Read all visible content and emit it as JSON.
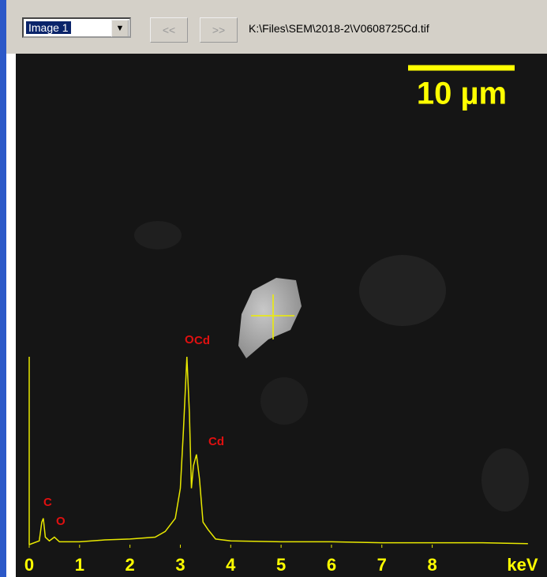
{
  "toolbar": {
    "dropdown": "Image 1",
    "prev": "<<",
    "next": ">>",
    "path": "K:\\Files\\SEM\\2018-2\\V0608725Cd.tif"
  },
  "image": {
    "scale_bar": "10 µm"
  },
  "chart_data": {
    "type": "line",
    "x": [
      0,
      0.2,
      0.25,
      0.28,
      0.32,
      0.4,
      0.5,
      0.6,
      1.0,
      1.5,
      2.0,
      2.5,
      2.7,
      2.9,
      3.0,
      3.06,
      3.13,
      3.18,
      3.22,
      3.26,
      3.32,
      3.38,
      3.45,
      3.55,
      3.7,
      4.0,
      5.0,
      6.0,
      7.0,
      8.0,
      9.0,
      9.9
    ],
    "series": [
      {
        "color": "#e8e800",
        "values": [
          0,
          2,
          12,
          14,
          4,
          2,
          4,
          1.5,
          1.5,
          2.5,
          3,
          4,
          7,
          14,
          30,
          60,
          100,
          70,
          30,
          42,
          48,
          35,
          12,
          8,
          3,
          2,
          1.5,
          1.5,
          1,
          1,
          1,
          0.5
        ]
      }
    ],
    "xlim": [
      0,
      10.2
    ],
    "ylim": [
      0,
      100
    ],
    "xticks": [
      0,
      1,
      2,
      3,
      4,
      5,
      6,
      7,
      8
    ],
    "x_label": "keV",
    "annotations": [
      "C",
      "O",
      "O",
      "Cd",
      "Cd"
    ]
  }
}
